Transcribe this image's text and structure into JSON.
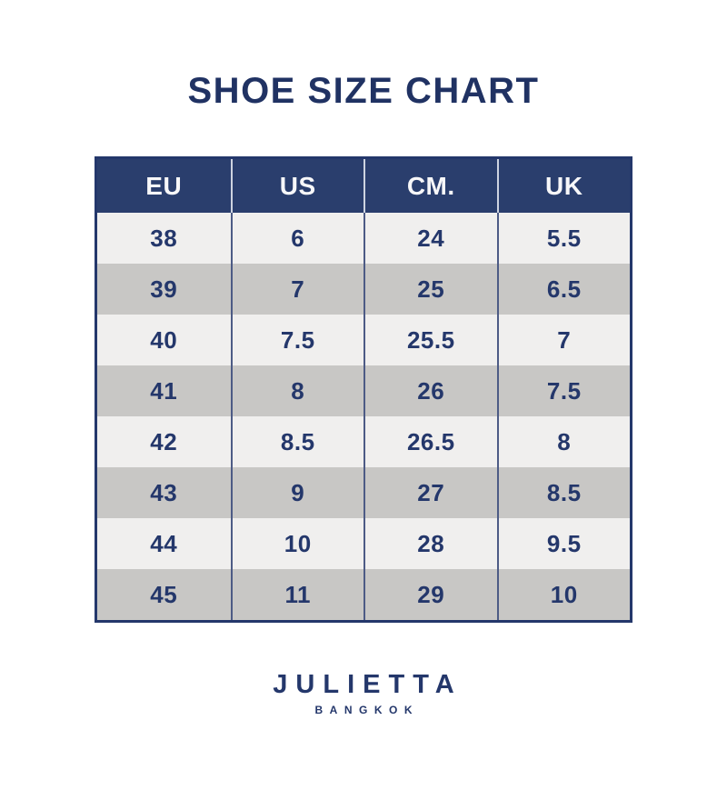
{
  "page": {
    "title": "SHOE SIZE CHART"
  },
  "chart_data": {
    "type": "table",
    "title": "SHOE SIZE CHART",
    "columns": [
      "EU",
      "US",
      "CM.",
      "UK"
    ],
    "rows": [
      [
        "38",
        "6",
        "24",
        "5.5"
      ],
      [
        "39",
        "7",
        "25",
        "6.5"
      ],
      [
        "40",
        "7.5",
        "25.5",
        "7"
      ],
      [
        "41",
        "8",
        "26",
        "7.5"
      ],
      [
        "42",
        "8.5",
        "26.5",
        "8"
      ],
      [
        "43",
        "9",
        "27",
        "8.5"
      ],
      [
        "44",
        "10",
        "28",
        "9.5"
      ],
      [
        "45",
        "11",
        "29",
        "10"
      ]
    ],
    "layout": {
      "header_background": "#2a3e6d",
      "header_text_color": "#ffffff",
      "row_alt_colors": [
        "#f0efee",
        "#c8c7c5"
      ],
      "border_color": "#24376b",
      "text_color": "#24376b"
    }
  },
  "brand": {
    "name": "JULIETTA",
    "city": "BANGKOK"
  }
}
